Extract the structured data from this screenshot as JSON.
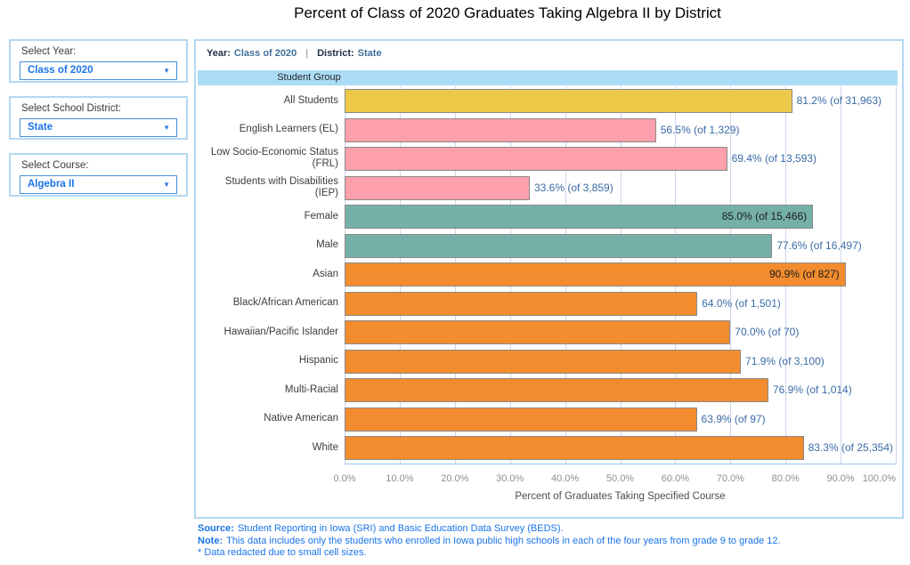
{
  "title": "Percent of Class of 2020 Graduates Taking Algebra II by District",
  "sidebar": {
    "filters": [
      {
        "label": "Select Year:",
        "value": "Class of 2020"
      },
      {
        "label": "Select School District:",
        "value": "State"
      },
      {
        "label": "Select Course:",
        "value": "Algebra II"
      }
    ]
  },
  "panel": {
    "year_label": "Year:",
    "year_value": "Class of 2020",
    "separator": "|",
    "district_label": "District:",
    "district_value": "State",
    "column_header": "Student Group"
  },
  "chart_data": {
    "type": "bar",
    "orientation": "horizontal",
    "title": "Percent of Class of 2020 Graduates Taking Algebra II by District",
    "xlabel": "Percent of Graduates Taking Specified Course",
    "ylabel": "Student Group",
    "xlim": [
      0,
      100
    ],
    "grid": true,
    "x_ticks": [
      "0.0%",
      "10.0%",
      "20.0%",
      "30.0%",
      "40.0%",
      "50.0%",
      "60.0%",
      "70.0%",
      "80.0%",
      "90.0%",
      "100.0%"
    ],
    "bars": [
      {
        "category": "All Students",
        "value": 81.2,
        "count": 31963,
        "label": "81.2% (of 31,963)",
        "color": "#edc94a",
        "label_position": "outside"
      },
      {
        "category": "English Learners (EL)",
        "value": 56.5,
        "count": 1329,
        "label": "56.5% (of 1,329)",
        "color": "#fda0ab",
        "label_position": "outside"
      },
      {
        "category": "Low Socio-Economic Status\n(FRL)",
        "value": 69.4,
        "count": 13593,
        "label": "69.4% (of 13,593)",
        "color": "#fda0ab",
        "label_position": "outside"
      },
      {
        "category": "Students with Disabilities\n(IEP)",
        "value": 33.6,
        "count": 3859,
        "label": "33.6% (of 3,859)",
        "color": "#fda0ab",
        "label_position": "outside"
      },
      {
        "category": "Female",
        "value": 85.0,
        "count": 15466,
        "label": "85.0% (of 15,466)",
        "color": "#75b0a8",
        "label_position": "inside"
      },
      {
        "category": "Male",
        "value": 77.6,
        "count": 16497,
        "label": "77.6% (of 16,497)",
        "color": "#75b0a8",
        "label_position": "outside"
      },
      {
        "category": "Asian",
        "value": 90.9,
        "count": 827,
        "label": "90.9% (of 827)",
        "color": "#f28c2e",
        "label_position": "inside"
      },
      {
        "category": "Black/African American",
        "value": 64.0,
        "count": 1501,
        "label": "64.0% (of 1,501)",
        "color": "#f28c2e",
        "label_position": "outside"
      },
      {
        "category": "Hawaiian/Pacific Islander",
        "value": 70.0,
        "count": 70,
        "label": "70.0% (of 70)",
        "color": "#f28c2e",
        "label_position": "outside"
      },
      {
        "category": "Hispanic",
        "value": 71.9,
        "count": 3100,
        "label": "71.9% (of 3,100)",
        "color": "#f28c2e",
        "label_position": "outside"
      },
      {
        "category": "Multi-Racial",
        "value": 76.9,
        "count": 1014,
        "label": "76.9% (of 1,014)",
        "color": "#f28c2e",
        "label_position": "outside"
      },
      {
        "category": "Native American",
        "value": 63.9,
        "count": 97,
        "label": "63.9% (of 97)",
        "color": "#f28c2e",
        "label_position": "outside"
      },
      {
        "category": "White",
        "value": 83.3,
        "count": 25354,
        "label": "83.3% (of 25,354)",
        "color": "#f28c2e",
        "label_position": "outside"
      }
    ]
  },
  "footer": {
    "source_label": "Source:",
    "source_text": "Student Reporting in Iowa (SRI) and Basic Education Data Survey (BEDS).",
    "note_label": "Note:",
    "note_text": "This data includes only the students who enrolled in Iowa public high schools in each of the four years from grade 9 to grade 12.",
    "redaction_note": "* Data redacted due to small cell sizes."
  },
  "colors": {
    "gold_bar": "#edc94a",
    "pink_bar": "#fda0ab",
    "teal_bar": "#75b0a8",
    "orange_bar": "#f28c2e",
    "bar_border": "#8a8a8a",
    "header_band": "#abdcf6",
    "panel_border": "#b3d8f0",
    "gridline": "#ccd6ec",
    "axis_line": "#9cc3e5",
    "value_label_blue": "#3a6ba6",
    "link_blue": "#1a74e8",
    "header_navy": "#1e2f45",
    "header_steel_blue": "#41719c"
  }
}
